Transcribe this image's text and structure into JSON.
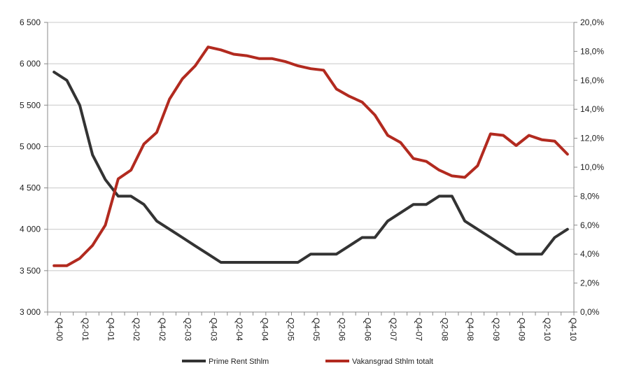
{
  "chart_data": {
    "type": "line",
    "title": "",
    "xlabel": "",
    "ylabel": "",
    "y2label": "",
    "grid": true,
    "legend_placement": "bottom",
    "ylim": [
      3000,
      6500
    ],
    "y_ticks": [
      "3 000",
      "3 500",
      "4 000",
      "4 500",
      "5 000",
      "5 500",
      "6 000",
      "6 500"
    ],
    "y2lim": [
      0,
      20
    ],
    "y2_ticks": [
      "0,0%",
      "2,0%",
      "4,0%",
      "6,0%",
      "8,0%",
      "10,0%",
      "12,0%",
      "14,0%",
      "16,0%",
      "18,0%",
      "20,0%"
    ],
    "x_tick_labels": [
      "Q4-00",
      "Q2-01",
      "Q4-01",
      "Q2-02",
      "Q4-02",
      "Q2-03",
      "Q4-03",
      "Q2-04",
      "Q4-04",
      "Q2-05",
      "Q4-05",
      "Q2-06",
      "Q4-06",
      "Q2-07",
      "Q4-07",
      "Q2-08",
      "Q4-08",
      "Q2-09",
      "Q4-09",
      "Q2-10",
      "Q4-10"
    ],
    "categories": [
      "Q4-00",
      "Q1-01",
      "Q2-01",
      "Q3-01",
      "Q4-01",
      "Q1-02",
      "Q2-02",
      "Q3-02",
      "Q4-02",
      "Q1-03",
      "Q2-03",
      "Q3-03",
      "Q4-03",
      "Q1-04",
      "Q2-04",
      "Q3-04",
      "Q4-04",
      "Q1-05",
      "Q2-05",
      "Q3-05",
      "Q4-05",
      "Q1-06",
      "Q2-06",
      "Q3-06",
      "Q4-06",
      "Q1-07",
      "Q2-07",
      "Q3-07",
      "Q4-07",
      "Q1-08",
      "Q2-08",
      "Q3-08",
      "Q4-08",
      "Q1-09",
      "Q2-09",
      "Q3-09",
      "Q4-09",
      "Q1-10",
      "Q2-10",
      "Q3-10",
      "Q4-10"
    ],
    "series": [
      {
        "name": "Prime Rent Sthlm",
        "axis": "left",
        "color": "#333333",
        "values": [
          5900,
          5800,
          5500,
          4900,
          4600,
          4400,
          4400,
          4300,
          4100,
          4000,
          3900,
          3800,
          3700,
          3600,
          3600,
          3600,
          3600,
          3600,
          3600,
          3600,
          3700,
          3700,
          3700,
          3800,
          3900,
          3900,
          4100,
          4200,
          4300,
          4300,
          4400,
          4400,
          4100,
          4000,
          3900,
          3800,
          3700,
          3700,
          3700,
          3900,
          4000
        ]
      },
      {
        "name": "Vakansgrad Sthlm totalt",
        "axis": "right",
        "color": "#b22a1f",
        "values": [
          3.2,
          3.2,
          3.7,
          4.6,
          6.0,
          9.2,
          9.8,
          11.6,
          12.4,
          14.7,
          16.1,
          17.0,
          18.3,
          18.1,
          17.8,
          17.7,
          17.5,
          17.5,
          17.3,
          17.0,
          16.8,
          16.7,
          15.4,
          14.9,
          14.5,
          13.6,
          12.2,
          11.7,
          10.6,
          10.4,
          9.8,
          9.4,
          9.3,
          10.1,
          12.3,
          12.2,
          11.5,
          12.2,
          11.9,
          11.8,
          10.9
        ]
      }
    ]
  }
}
